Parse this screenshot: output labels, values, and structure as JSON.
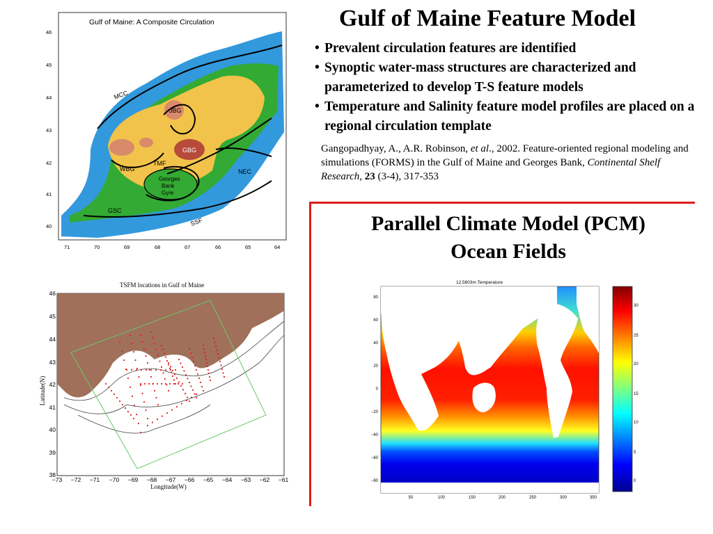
{
  "slide": {
    "title": "Gulf of Maine Feature Model",
    "bullets": [
      "Prevalent circulation features are identified",
      "Synoptic water-mass structures are characterized and parameterized to develop T-S feature models",
      "Temperature and Salinity feature model profiles are placed on a regional circulation template"
    ],
    "citation": {
      "authors": "Gangopadhyay, A., A.R. Robinson, ",
      "etal": "et al",
      "rest": "., 2002. Feature-oriented regional modeling and simulations (FORMS) in the Gulf of Maine and Georges Bank, ",
      "journal": "Continental Shelf Research",
      "sep": ", ",
      "volume": "23",
      "pages": " (3-4), 317-353"
    },
    "pcm_title_line1": "Parallel Climate Model (PCM)",
    "pcm_title_line2": "Ocean Fields"
  },
  "figure_circulation": {
    "title": "Gulf of Maine: A Composite Circulation",
    "lat_ticks": [
      "46",
      "45",
      "44",
      "43",
      "42",
      "41",
      "40"
    ],
    "lon_ticks": [
      "71",
      "70",
      "69",
      "68",
      "67",
      "66",
      "65",
      "64"
    ],
    "labels": {
      "mcc": "MCC",
      "jbg": "JBG",
      "gbg": "GBG",
      "wbg": "WBG",
      "tmf": "TMF",
      "nec": "NEC",
      "gyre1": "Georges",
      "gyre2": "Bank",
      "gyre3": "Gyre",
      "gsc": "GSC",
      "ssf": "SSF"
    },
    "colors": {
      "land": "#ffffff",
      "deep": "#3399dd",
      "shelf": "#33aa33",
      "basin": "#f2c34a",
      "deep_basin": "#d98a6a",
      "bank": "#b74a3a"
    }
  },
  "figure_tsfm": {
    "title": "TSFM locations in Gulf of Maine",
    "ylabel": "Latitude(N)",
    "xlabel": "Longitude(W)",
    "lat_ticks": [
      "46",
      "45",
      "44",
      "43",
      "42",
      "41",
      "40",
      "39",
      "38"
    ],
    "lon_ticks": [
      "−73",
      "−72",
      "−71",
      "−70",
      "−69",
      "−68",
      "−67",
      "−66",
      "−65",
      "−64",
      "−63",
      "−62",
      "−61"
    ],
    "colors": {
      "land": "#a0705a",
      "points": "#dd2222",
      "box": "#66cc66"
    }
  },
  "figure_pcm": {
    "title": "12.5603m Temperature",
    "y_ticks": [
      "80",
      "60",
      "40",
      "20",
      "0",
      "−20",
      "−40",
      "−60",
      "−80"
    ],
    "x_ticks": [
      "50",
      "100",
      "150",
      "200",
      "250",
      "300",
      "350"
    ],
    "colorbar_ticks": [
      "30",
      "25",
      "20",
      "15",
      "10",
      "5",
      "0"
    ],
    "colormap": "jet"
  }
}
